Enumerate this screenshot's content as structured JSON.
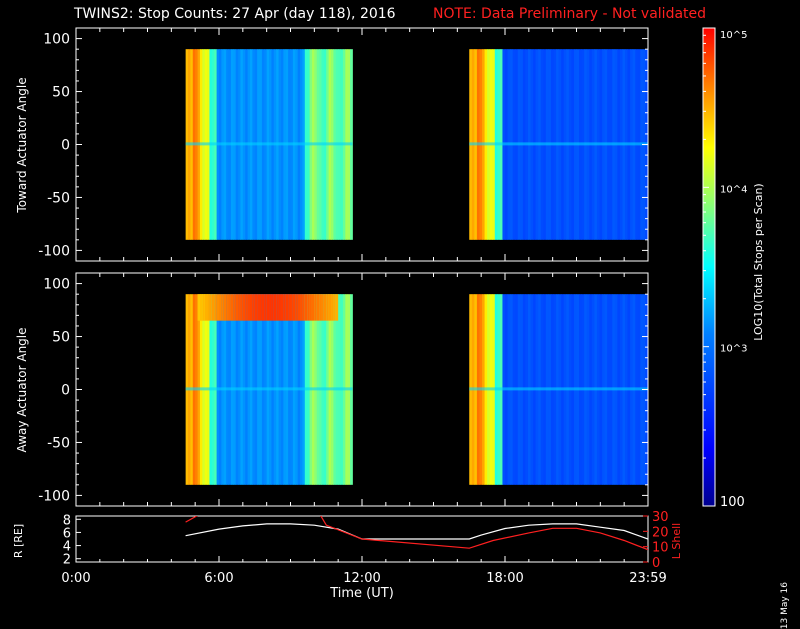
{
  "header": {
    "title": "TWINS2: Stop Counts: 27 Apr (day 118), 2016",
    "note": "NOTE: Data Preliminary - Not validated"
  },
  "datestamp": "13 May 16",
  "colorbar": {
    "label": "LOG10(Total Stops per Scan)",
    "ticks": [
      "10^5",
      "10^4",
      "10^3",
      "100"
    ],
    "tick_values": [
      100000,
      10000,
      1000,
      100
    ]
  },
  "colors": {
    "background": "#000000",
    "panel_text": "#ffffff",
    "note": "#ff2020",
    "lshell": "#ff2020",
    "rline": "#ffffff"
  },
  "chart_data": [
    {
      "type": "heatmap",
      "ylabel": "Toward Actuator Angle",
      "ylim": [
        -110,
        110
      ],
      "yticks": [
        100,
        50,
        0,
        -50,
        -100
      ],
      "xlim": [
        0,
        24
      ],
      "data_windows_hours": [
        [
          4.6,
          11.6
        ],
        [
          16.5,
          24.0
        ]
      ],
      "angle_range": [
        -90,
        90
      ],
      "color_scale": "log10 counts, 100 to 1e5"
    },
    {
      "type": "heatmap",
      "ylabel": "Away Actuator Angle",
      "ylim": [
        -110,
        110
      ],
      "yticks": [
        100,
        50,
        0,
        -50,
        -100
      ],
      "xlim": [
        0,
        24
      ],
      "data_windows_hours": [
        [
          4.6,
          11.6
        ],
        [
          16.5,
          24.0
        ]
      ],
      "angle_range": [
        -90,
        90
      ],
      "color_scale": "log10 counts, 100 to 1e5"
    },
    {
      "type": "line",
      "xlabel": "Time (UT)",
      "xticks": [
        "0:00",
        "6:00",
        "12:00",
        "18:00",
        "23:59"
      ],
      "xtick_hours": [
        0,
        6,
        12,
        18,
        24
      ],
      "y_left_label": "R [RE]",
      "y_left_ticks": [
        8,
        6,
        4,
        2
      ],
      "y_left_lim": [
        1.5,
        8.5
      ],
      "y_right_label": "L Shell",
      "y_right_ticks": [
        30,
        20,
        10,
        0
      ],
      "y_right_lim": [
        0,
        30
      ],
      "series": [
        {
          "name": "R",
          "axis": "left",
          "x": [
            4.6,
            6,
            7,
            8,
            9,
            10,
            11,
            12,
            13,
            14,
            15,
            16,
            16.5,
            17,
            18,
            19,
            20,
            21,
            22,
            23,
            24
          ],
          "y": [
            5.5,
            6.5,
            7.0,
            7.3,
            7.3,
            7.1,
            6.5,
            5.0,
            5.0,
            5.0,
            5.0,
            5.0,
            5.0,
            5.6,
            6.6,
            7.1,
            7.3,
            7.3,
            6.8,
            6.3,
            5.0
          ]
        },
        {
          "name": "L Shell",
          "axis": "right",
          "x": [
            4.6,
            5.3,
            10.2,
            10.5,
            12.0,
            16.5,
            17.5,
            19.0,
            20.0,
            21.0,
            22.0,
            23.0,
            24.0
          ],
          "y": [
            26,
            32,
            32,
            24,
            15,
            9,
            14,
            19,
            22,
            22,
            19,
            14,
            8
          ]
        }
      ]
    }
  ]
}
